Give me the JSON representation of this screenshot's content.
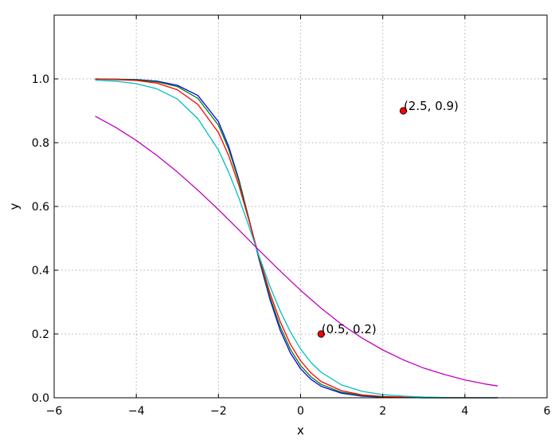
{
  "chart_data": {
    "type": "line",
    "title": "",
    "xlabel": "x",
    "ylabel": "y",
    "xlim": [
      -6,
      6
    ],
    "ylim": [
      0.0,
      1.2
    ],
    "xticks": [
      -6,
      -4,
      -2,
      0,
      2,
      4,
      6
    ],
    "xtick_labels": [
      "−6",
      "−4",
      "−2",
      "0",
      "2",
      "4",
      "6"
    ],
    "yticks": [
      0.0,
      0.2,
      0.4,
      0.6,
      0.8,
      1.0
    ],
    "ytick_labels": [
      "0.0",
      "0.2",
      "0.4",
      "0.6",
      "0.8",
      "1.0"
    ],
    "grid": true,
    "legend": "none",
    "series": [
      {
        "color": "#0000ff",
        "x": [
          -5.0,
          -4.5,
          -4.0,
          -3.5,
          -3.0,
          -2.5,
          -2.0,
          -1.75,
          -1.5,
          -1.25,
          -1.0,
          -0.75,
          -0.5,
          -0.25,
          0.0,
          0.25,
          0.5,
          1.0,
          1.5,
          2.0,
          2.5,
          3.0,
          3.5,
          4.0,
          4.5,
          4.8
        ],
        "y": [
          1.0,
          0.999,
          0.998,
          0.993,
          0.98,
          0.948,
          0.866,
          0.788,
          0.683,
          0.557,
          0.428,
          0.31,
          0.213,
          0.141,
          0.091,
          0.058,
          0.036,
          0.014,
          0.005,
          0.002,
          0.001,
          0.0,
          0.0,
          0.0,
          0.0,
          0.0
        ]
      },
      {
        "color": "#008000",
        "x": [
          -5.0,
          -4.5,
          -4.0,
          -3.5,
          -3.0,
          -2.5,
          -2.0,
          -1.75,
          -1.5,
          -1.25,
          -1.0,
          -0.75,
          -0.5,
          -0.25,
          0.0,
          0.25,
          0.5,
          1.0,
          1.5,
          2.0,
          2.5,
          3.0,
          3.5,
          4.0,
          4.5,
          4.8
        ],
        "y": [
          1.0,
          0.999,
          0.997,
          0.991,
          0.976,
          0.939,
          0.855,
          0.779,
          0.678,
          0.557,
          0.432,
          0.318,
          0.224,
          0.152,
          0.101,
          0.066,
          0.042,
          0.017,
          0.007,
          0.003,
          0.001,
          0.0,
          0.0,
          0.0,
          0.0,
          0.0
        ]
      },
      {
        "color": "#ff0000",
        "x": [
          -5.0,
          -4.5,
          -4.0,
          -3.5,
          -3.0,
          -2.5,
          -2.0,
          -1.75,
          -1.5,
          -1.25,
          -1.0,
          -0.75,
          -0.5,
          -0.25,
          0.0,
          0.25,
          0.5,
          1.0,
          1.5,
          2.0,
          2.5,
          3.0,
          3.5,
          4.0,
          4.5,
          4.8
        ],
        "y": [
          0.999,
          0.998,
          0.995,
          0.987,
          0.966,
          0.92,
          0.832,
          0.759,
          0.665,
          0.553,
          0.437,
          0.33,
          0.24,
          0.168,
          0.116,
          0.078,
          0.051,
          0.022,
          0.009,
          0.004,
          0.002,
          0.001,
          0.0,
          0.0,
          0.0,
          0.0
        ]
      },
      {
        "color": "#00bfbf",
        "x": [
          -5.0,
          -4.5,
          -4.0,
          -3.5,
          -3.0,
          -2.5,
          -2.0,
          -1.75,
          -1.5,
          -1.25,
          -1.0,
          -0.75,
          -0.5,
          -0.25,
          0.0,
          0.25,
          0.5,
          1.0,
          1.5,
          2.0,
          2.5,
          3.0,
          3.5,
          4.0,
          4.5,
          4.8
        ],
        "y": [
          0.996,
          0.993,
          0.985,
          0.969,
          0.937,
          0.875,
          0.777,
          0.707,
          0.626,
          0.535,
          0.44,
          0.351,
          0.273,
          0.207,
          0.153,
          0.111,
          0.08,
          0.04,
          0.02,
          0.01,
          0.005,
          0.002,
          0.001,
          0.0,
          0.0,
          0.0
        ]
      },
      {
        "color": "#bf00bf",
        "x": [
          -5.0,
          -4.5,
          -4.0,
          -3.5,
          -3.0,
          -2.5,
          -2.0,
          -1.5,
          -1.0,
          -0.5,
          0.0,
          0.5,
          1.0,
          1.5,
          2.0,
          2.5,
          3.0,
          3.5,
          4.0,
          4.5,
          4.8
        ],
        "y": [
          0.883,
          0.848,
          0.807,
          0.76,
          0.708,
          0.651,
          0.59,
          0.526,
          0.461,
          0.398,
          0.337,
          0.281,
          0.23,
          0.187,
          0.15,
          0.119,
          0.093,
          0.073,
          0.056,
          0.043,
          0.037
        ]
      }
    ],
    "annotations": [
      {
        "x": 0.5,
        "y": 0.2,
        "label": "(0.5, 0.2)",
        "color": "#ff0000"
      },
      {
        "x": 2.5,
        "y": 0.9,
        "label": "(2.5, 0.9)",
        "color": "#ff0000"
      }
    ]
  }
}
